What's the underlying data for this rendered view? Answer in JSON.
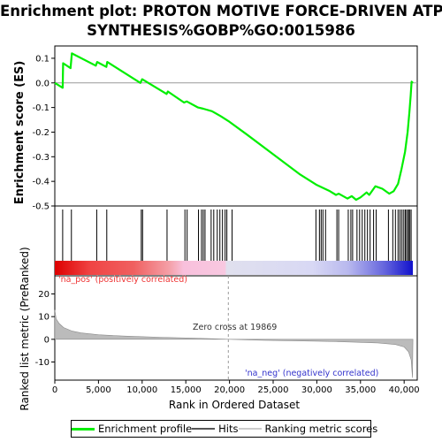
{
  "title_line1": "Enrichment plot: PROTON MOTIVE FORCE-DRIVEN ATP",
  "title_line2": "SYNTHESIS%GOBP%GO:0015986",
  "es_axis_label": "Enrichment score (ES)",
  "metric_axis_label": "Ranked list metric (PreRanked)",
  "x_axis_label": "Rank in Ordered Dataset",
  "pos_label": "'na_pos' (positively correlated)",
  "neg_label": "'na_neg' (negatively correlated)",
  "zero_cross_label": "Zero cross at 19869",
  "colors": {
    "profile": "#00ee00",
    "hits": "#000000",
    "metric_fill": "#bbbbbb",
    "pos_text": "#ee3333",
    "neg_text": "#3333cc"
  },
  "legend": {
    "profile": "Enrichment profile",
    "hits": "Hits",
    "ranking": "Ranking metric scores"
  },
  "chart_data": {
    "type": "line",
    "x_range": [
      0,
      41500
    ],
    "es_ylim": [
      -0.5,
      0.15
    ],
    "es_yticks": [
      0.1,
      0.0,
      -0.1,
      -0.2,
      -0.3,
      -0.4,
      -0.5
    ],
    "metric_ylim": [
      -18,
      28
    ],
    "metric_yticks": [
      20,
      10,
      0,
      -10
    ],
    "xticks": [
      0,
      5000,
      10000,
      15000,
      20000,
      25000,
      30000,
      35000,
      40000
    ],
    "zero_cross": 19869,
    "grid": false,
    "es_profile": [
      [
        0,
        0.0
      ],
      [
        900,
        -0.02
      ],
      [
        950,
        0.08
      ],
      [
        1800,
        0.06
      ],
      [
        1950,
        0.12
      ],
      [
        4700,
        0.07
      ],
      [
        4850,
        0.085
      ],
      [
        5900,
        0.065
      ],
      [
        6000,
        0.085
      ],
      [
        9800,
        0.0
      ],
      [
        10000,
        0.015
      ],
      [
        12800,
        -0.045
      ],
      [
        12950,
        -0.035
      ],
      [
        14800,
        -0.08
      ],
      [
        15100,
        -0.075
      ],
      [
        16400,
        -0.1
      ],
      [
        17000,
        -0.105
      ],
      [
        18000,
        -0.115
      ],
      [
        19000,
        -0.135
      ],
      [
        19869,
        -0.155
      ],
      [
        22000,
        -0.21
      ],
      [
        25000,
        -0.29
      ],
      [
        28000,
        -0.37
      ],
      [
        30000,
        -0.415
      ],
      [
        31500,
        -0.44
      ],
      [
        32200,
        -0.455
      ],
      [
        32500,
        -0.45
      ],
      [
        33500,
        -0.47
      ],
      [
        34000,
        -0.46
      ],
      [
        34500,
        -0.475
      ],
      [
        35000,
        -0.465
      ],
      [
        35700,
        -0.445
      ],
      [
        36000,
        -0.455
      ],
      [
        36700,
        -0.42
      ],
      [
        37500,
        -0.43
      ],
      [
        38300,
        -0.45
      ],
      [
        38800,
        -0.44
      ],
      [
        39300,
        -0.41
      ],
      [
        39700,
        -0.35
      ],
      [
        40100,
        -0.28
      ],
      [
        40400,
        -0.2
      ],
      [
        40600,
        -0.12
      ],
      [
        40750,
        -0.05
      ],
      [
        40850,
        0.005
      ],
      [
        41000,
        0.0
      ]
    ],
    "hits": [
      900,
      1900,
      4800,
      5950,
      9900,
      10050,
      12850,
      14900,
      15150,
      16450,
      16800,
      17000,
      17200,
      17900,
      18200,
      18600,
      18900,
      19200,
      19500,
      19700,
      20300,
      29900,
      30300,
      30500,
      30700,
      31000,
      32300,
      32500,
      33600,
      33900,
      34100,
      34600,
      34900,
      35200,
      35500,
      35800,
      36100,
      36500,
      36800,
      38200,
      38700,
      39000,
      39300,
      39500,
      39700,
      39900,
      40100,
      40200,
      40400,
      40500,
      40650,
      40800
    ],
    "metric_points": [
      [
        0,
        13
      ],
      [
        150,
        9
      ],
      [
        500,
        7
      ],
      [
        1000,
        5.2
      ],
      [
        2000,
        3.6
      ],
      [
        3000,
        2.8
      ],
      [
        5000,
        2.0
      ],
      [
        8000,
        1.4
      ],
      [
        12000,
        0.9
      ],
      [
        16000,
        0.5
      ],
      [
        19869,
        0.0
      ],
      [
        24000,
        -0.4
      ],
      [
        30000,
        -0.8
      ],
      [
        34000,
        -1.2
      ],
      [
        37000,
        -1.6
      ],
      [
        39000,
        -2.3
      ],
      [
        40000,
        -3.4
      ],
      [
        40500,
        -5.5
      ],
      [
        40800,
        -9
      ],
      [
        40950,
        -17
      ],
      [
        41000,
        0
      ]
    ]
  }
}
